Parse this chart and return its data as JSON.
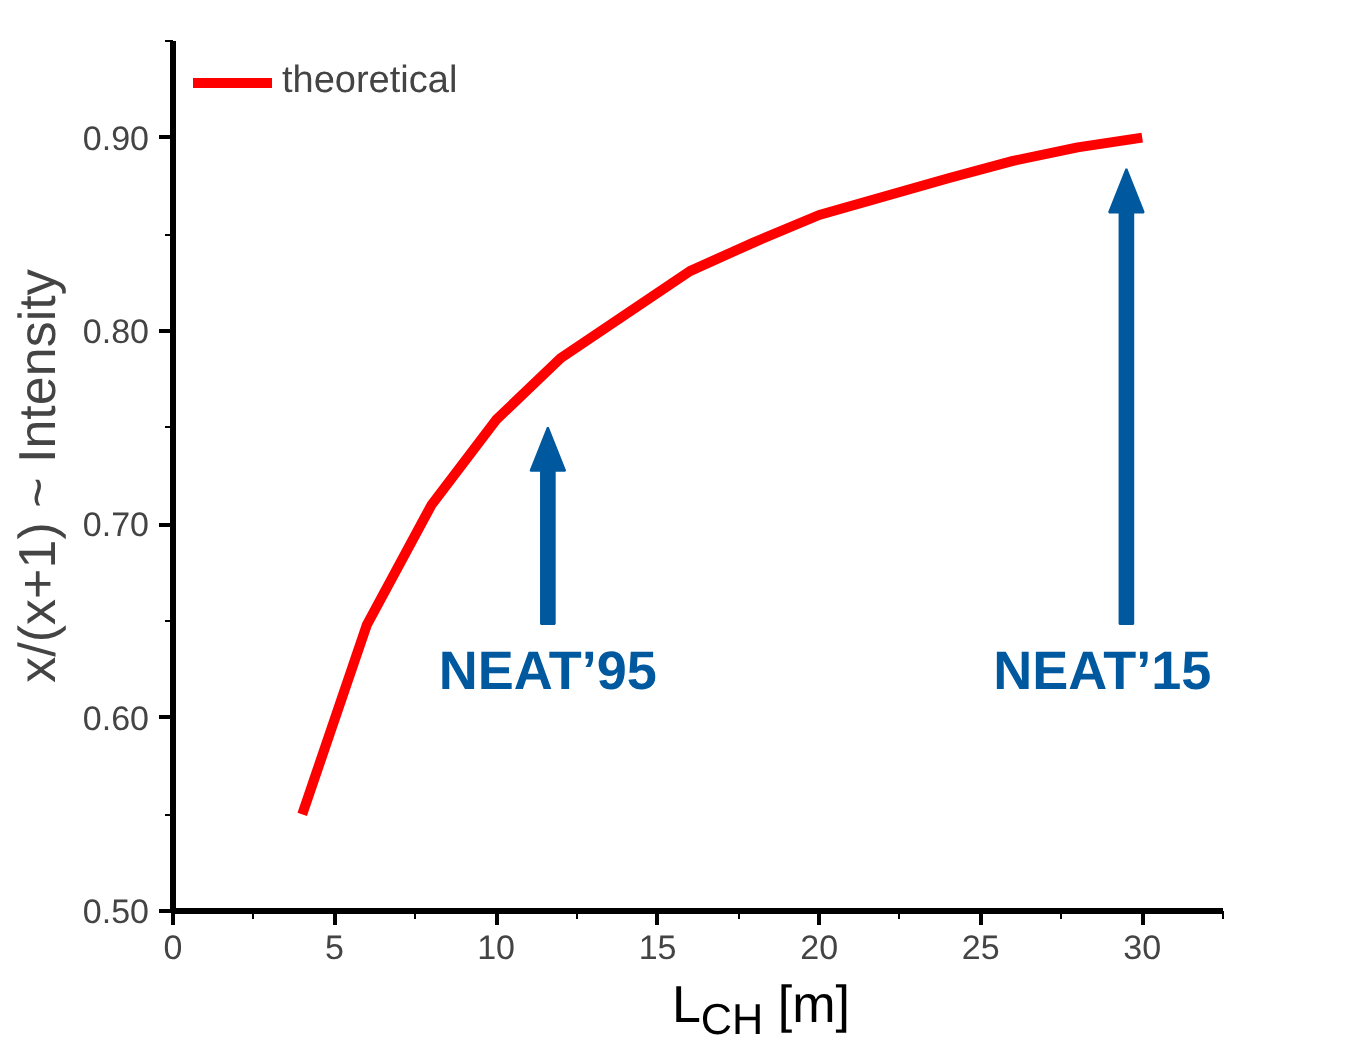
{
  "chart_data": {
    "type": "line",
    "xlabel": "L$_{CH}$ [m]",
    "ylabel": "x/(x+1) ~ Intensity",
    "x": [
      4,
      6,
      8,
      10,
      12,
      16,
      18,
      20,
      24,
      26,
      28,
      30
    ],
    "series": [
      {
        "name": "theoretical",
        "color": "#ff0000",
        "values": [
          0.55,
          0.648,
          0.71,
          0.754,
          0.786,
          0.831,
          0.846,
          0.86,
          0.879,
          0.888,
          0.895,
          0.9
        ]
      }
    ],
    "xlim": [
      0,
      32.5
    ],
    "ylim": [
      0.5,
      0.95
    ],
    "xticks": [
      0,
      5,
      10,
      15,
      20,
      25,
      30
    ],
    "yticks": [
      {
        "value": 0.5,
        "label": "0.50"
      },
      {
        "value": 0.6,
        "label": "0.60"
      },
      {
        "value": 0.7,
        "label": "0.70"
      },
      {
        "value": 0.8,
        "label": "0.80"
      },
      {
        "value": 0.9,
        "label": "0.90"
      }
    ],
    "annotations": [
      "NEAT’95",
      "NEAT’15"
    ],
    "legend": "top left",
    "grid": false,
    "marker": "none",
    "line_style": "solid"
  }
}
